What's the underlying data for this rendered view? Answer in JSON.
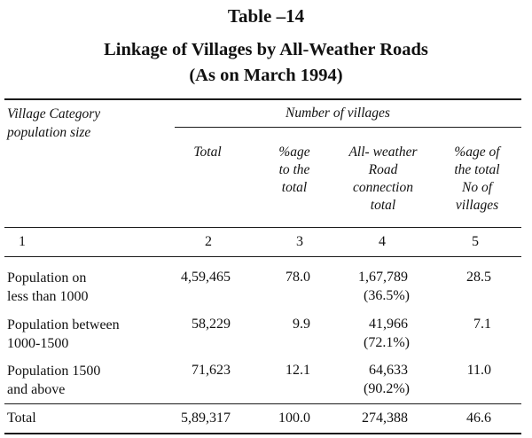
{
  "table_number": "Table –14",
  "title": "Linkage of Villages by All-Weather Roads",
  "subtitle": "(As on March 1994)",
  "header": {
    "village_category": [
      "Village Category",
      "population size"
    ],
    "number_of_villages": "Number of villages",
    "total": "Total",
    "pct_to_total": [
      "%age",
      "to the",
      "total"
    ],
    "all_weather": [
      "All- weather",
      "Road",
      "connection",
      "total"
    ],
    "pct_of_total_villages": [
      "%age of",
      "the total",
      "No of",
      "villages"
    ]
  },
  "column_numbers": [
    "1",
    "2",
    "3",
    "4",
    "5"
  ],
  "rows": [
    {
      "category": [
        "Population on",
        "less than 1000"
      ],
      "total": "4,59,465",
      "pct": "78.0",
      "road": "1,67,789",
      "road_pct": "(36.5%)",
      "pct_villages": "28.5"
    },
    {
      "category": [
        "Population between",
        "1000-1500"
      ],
      "total": "58,229",
      "pct": "9.9",
      "road": "41,966",
      "road_pct": "(72.1%)",
      "pct_villages": "7.1"
    },
    {
      "category": [
        "Population 1500",
        "and above"
      ],
      "total": "71,623",
      "pct": "12.1",
      "road": "64,633",
      "road_pct": "(90.2%)",
      "pct_villages": "11.0"
    }
  ],
  "total_row": {
    "label": "Total",
    "total": "5,89,317",
    "pct": "100.0",
    "road": "274,388",
    "pct_villages": "46.6"
  }
}
